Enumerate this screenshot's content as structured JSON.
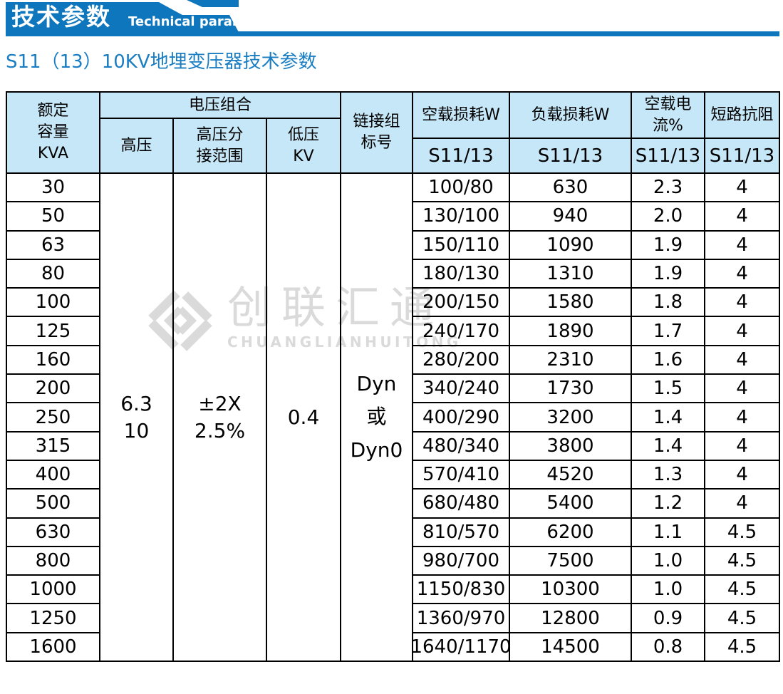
{
  "banner": {
    "title": "技术参数",
    "subtitle_en": "Technical parameter",
    "color": "#0e76bd"
  },
  "section_title": "S11（13）10KV地埋变压器技术参数",
  "watermark": {
    "logo_text": "创联汇通",
    "logo_subtext": "CHUANGLIANHUITONG"
  },
  "table": {
    "headers": {
      "capacity": "额定\n容量\nKVA",
      "voltage_combo": "电压组合",
      "hv": "高压",
      "hv_tap": "高压分\n接范围",
      "lv": "低压\nKV",
      "vector_group": "链接组\n标号",
      "no_load_loss": "空载损耗W",
      "load_loss": "负载损耗W",
      "no_load_current": "空载电流%",
      "impedance": "短路抗阻",
      "sub_no_load_loss": "S11/13",
      "sub_load_loss": "S11/13",
      "sub_no_load_current": "S11/13",
      "sub_impedance": "S11/13"
    },
    "merged": {
      "hv": "6.3\n10",
      "hv_tap": "±2X\n2.5%",
      "lv": "0.4",
      "vector_group": "Dyn\n或\nDyn0"
    },
    "rows": [
      {
        "kva": "30",
        "no_load": "100/80",
        "load": "630",
        "current": "2.3",
        "impedance": "4"
      },
      {
        "kva": "50",
        "no_load": "130/100",
        "load": "940",
        "current": "2.0",
        "impedance": "4"
      },
      {
        "kva": "63",
        "no_load": "150/110",
        "load": "1090",
        "current": "1.9",
        "impedance": "4"
      },
      {
        "kva": "80",
        "no_load": "180/130",
        "load": "1310",
        "current": "1.9",
        "impedance": "4"
      },
      {
        "kva": "100",
        "no_load": "200/150",
        "load": "1580",
        "current": "1.8",
        "impedance": "4"
      },
      {
        "kva": "125",
        "no_load": "240/170",
        "load": "1890",
        "current": "1.7",
        "impedance": "4"
      },
      {
        "kva": "160",
        "no_load": "280/200",
        "load": "2310",
        "current": "1.6",
        "impedance": "4"
      },
      {
        "kva": "200",
        "no_load": "340/240",
        "load": "1730",
        "current": "1.5",
        "impedance": "4"
      },
      {
        "kva": "250",
        "no_load": "400/290",
        "load": "3200",
        "current": "1.4",
        "impedance": "4"
      },
      {
        "kva": "315",
        "no_load": "480/340",
        "load": "3800",
        "current": "1.4",
        "impedance": "4"
      },
      {
        "kva": "400",
        "no_load": "570/410",
        "load": "4520",
        "current": "1.3",
        "impedance": "4"
      },
      {
        "kva": "500",
        "no_load": "680/480",
        "load": "5400",
        "current": "1.2",
        "impedance": "4"
      },
      {
        "kva": "630",
        "no_load": "810/570",
        "load": "6200",
        "current": "1.1",
        "impedance": "4.5"
      },
      {
        "kva": "800",
        "no_load": "980/700",
        "load": "7500",
        "current": "1.0",
        "impedance": "4.5"
      },
      {
        "kva": "1000",
        "no_load": "1150/830",
        "load": "10300",
        "current": "1.0",
        "impedance": "4.5"
      },
      {
        "kva": "1250",
        "no_load": "1360/970",
        "load": "12800",
        "current": "0.9",
        "impedance": "4.5"
      },
      {
        "kva": "1600",
        "no_load": "1640/1170",
        "load": "14500",
        "current": "0.8",
        "impedance": "4.5"
      }
    ]
  }
}
